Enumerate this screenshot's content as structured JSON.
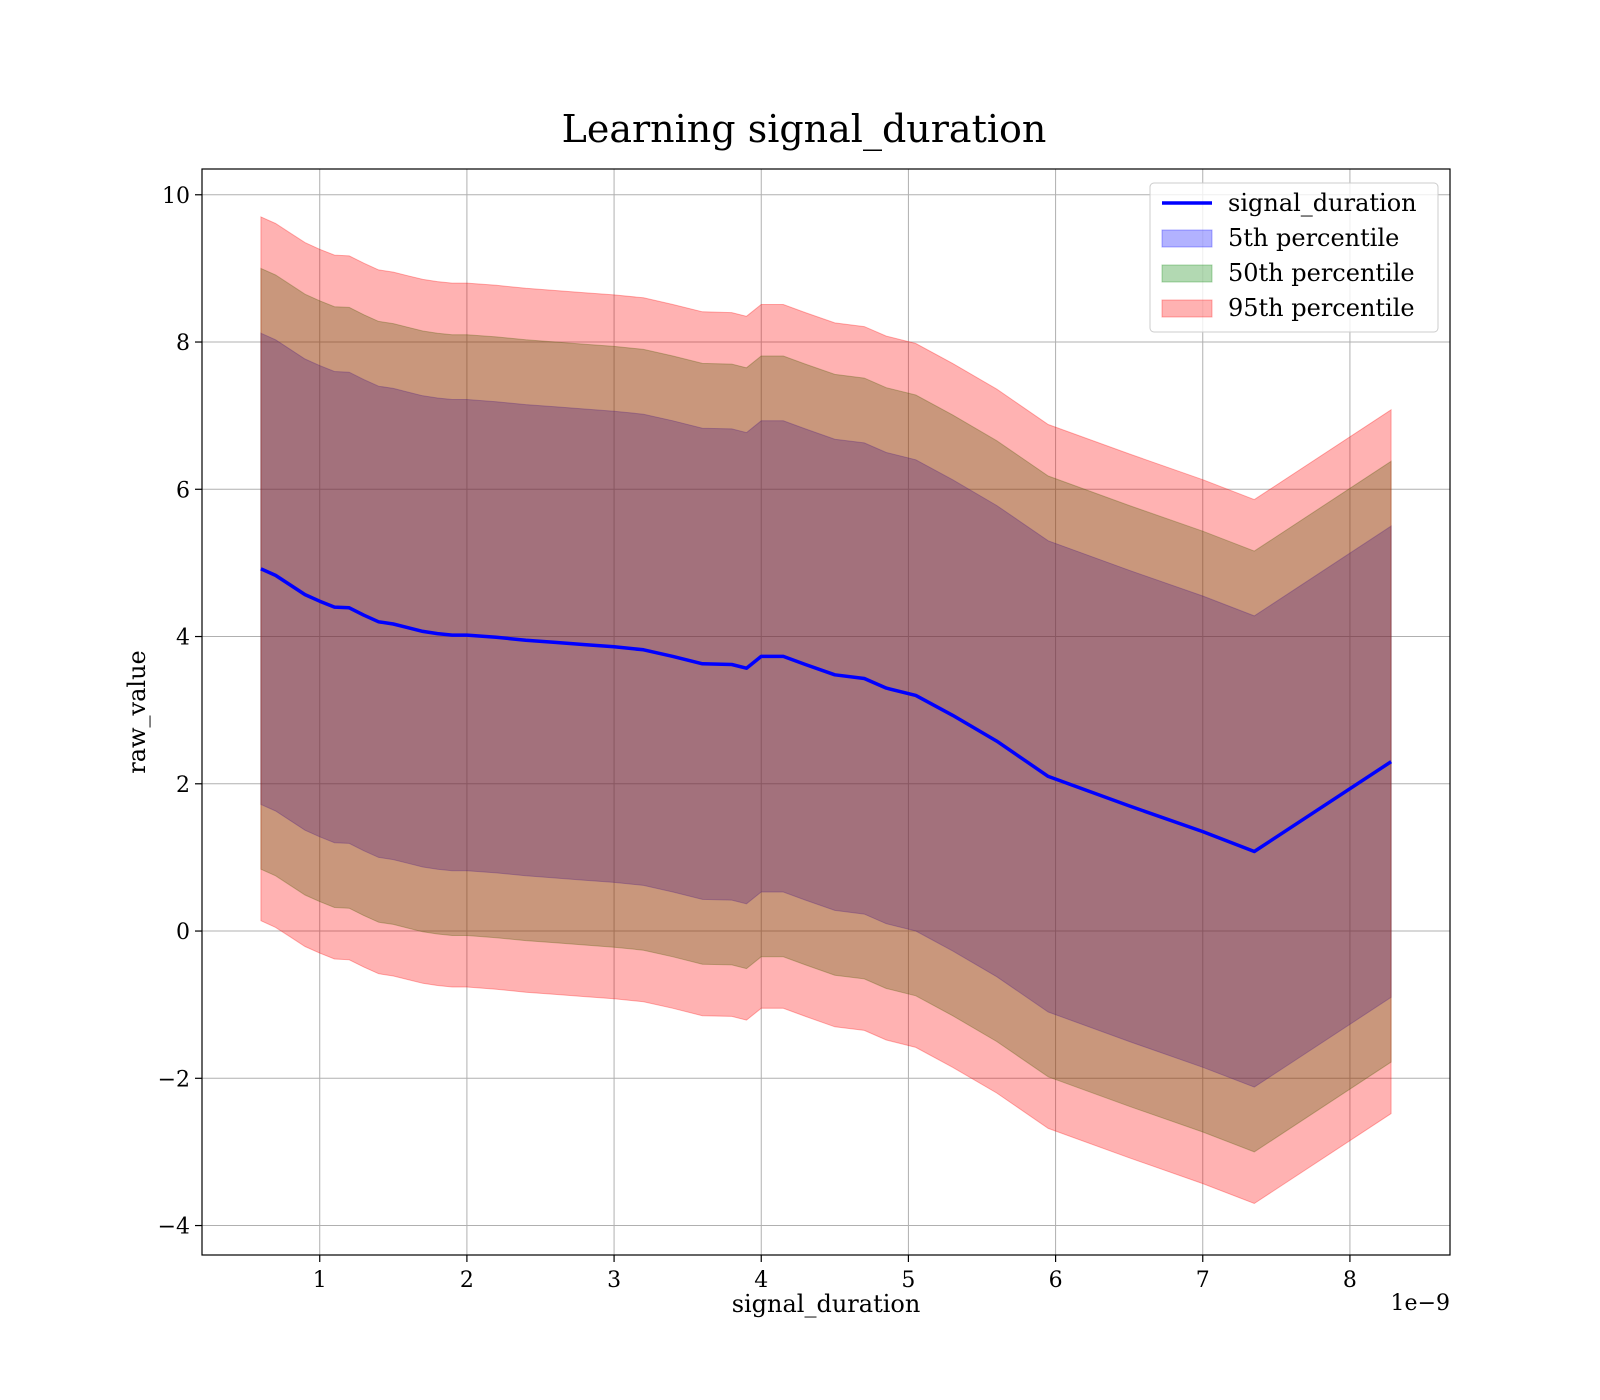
{
  "chart_data": {
    "type": "line",
    "title": "Learning signal_duration",
    "xlabel": "signal_duration",
    "ylabel": "raw_value",
    "x_offset_label": "1e−9",
    "xlim": [
      0.2,
      8.68
    ],
    "ylim": [
      -4.4,
      10.35
    ],
    "xticks": [
      1,
      2,
      3,
      4,
      5,
      6,
      7,
      8
    ],
    "xtick_labels": [
      "1",
      "2",
      "3",
      "4",
      "5",
      "6",
      "7",
      "8"
    ],
    "yticks": [
      -4,
      -2,
      0,
      2,
      4,
      6,
      8,
      10
    ],
    "ytick_labels": [
      "−4",
      "−2",
      "0",
      "2",
      "4",
      "6",
      "8",
      "10"
    ],
    "grid": true,
    "legend_position": "top-right",
    "x": [
      0.6,
      0.7,
      0.8,
      0.9,
      1.0,
      1.1,
      1.2,
      1.3,
      1.4,
      1.5,
      1.6,
      1.7,
      1.8,
      1.9,
      2.0,
      2.2,
      2.4,
      2.6,
      2.8,
      3.0,
      3.2,
      3.4,
      3.6,
      3.8,
      3.9,
      4.0,
      4.15,
      4.3,
      4.5,
      4.7,
      4.85,
      5.05,
      5.3,
      5.6,
      5.95,
      6.5,
      7.0,
      7.35,
      8.28
    ],
    "series": [
      {
        "name": "signal_duration",
        "kind": "line",
        "color": "#0000ff",
        "values": [
          4.92,
          4.83,
          4.7,
          4.57,
          4.48,
          4.4,
          4.39,
          4.29,
          4.2,
          4.17,
          4.12,
          4.07,
          4.04,
          4.02,
          4.02,
          3.99,
          3.95,
          3.92,
          3.89,
          3.86,
          3.82,
          3.73,
          3.63,
          3.62,
          3.57,
          3.73,
          3.73,
          3.62,
          3.48,
          3.43,
          3.3,
          3.2,
          2.93,
          2.58,
          2.1,
          1.7,
          1.35,
          1.08,
          2.3
        ]
      },
      {
        "name": "5th percentile",
        "kind": "band",
        "color": "#0000ff",
        "opacity": 0.3,
        "lower": [
          1.72,
          1.63,
          1.5,
          1.37,
          1.28,
          1.2,
          1.19,
          1.09,
          1.0,
          0.97,
          0.92,
          0.87,
          0.84,
          0.82,
          0.82,
          0.79,
          0.75,
          0.72,
          0.69,
          0.66,
          0.62,
          0.53,
          0.43,
          0.42,
          0.37,
          0.53,
          0.53,
          0.42,
          0.28,
          0.23,
          0.1,
          0.0,
          -0.27,
          -0.62,
          -1.1,
          -1.5,
          -1.85,
          -2.12,
          -0.9
        ],
        "upper": [
          8.12,
          8.03,
          7.9,
          7.77,
          7.68,
          7.6,
          7.59,
          7.49,
          7.4,
          7.37,
          7.32,
          7.27,
          7.24,
          7.22,
          7.22,
          7.19,
          7.15,
          7.12,
          7.09,
          7.06,
          7.02,
          6.93,
          6.83,
          6.82,
          6.77,
          6.93,
          6.93,
          6.82,
          6.68,
          6.63,
          6.5,
          6.4,
          6.13,
          5.78,
          5.3,
          4.9,
          4.55,
          4.28,
          5.5
        ]
      },
      {
        "name": "50th percentile",
        "kind": "band",
        "color": "#008000",
        "opacity": 0.3,
        "lower": [
          0.84,
          0.75,
          0.62,
          0.49,
          0.4,
          0.32,
          0.31,
          0.21,
          0.12,
          0.09,
          0.04,
          -0.01,
          -0.04,
          -0.06,
          -0.06,
          -0.09,
          -0.13,
          -0.16,
          -0.19,
          -0.22,
          -0.26,
          -0.35,
          -0.45,
          -0.46,
          -0.51,
          -0.35,
          -0.35,
          -0.46,
          -0.6,
          -0.65,
          -0.78,
          -0.88,
          -1.15,
          -1.5,
          -1.98,
          -2.38,
          -2.73,
          -3.0,
          -1.78
        ],
        "upper": [
          9.0,
          8.91,
          8.78,
          8.65,
          8.56,
          8.48,
          8.47,
          8.37,
          8.28,
          8.25,
          8.2,
          8.15,
          8.12,
          8.1,
          8.1,
          8.07,
          8.03,
          8.0,
          7.97,
          7.94,
          7.9,
          7.81,
          7.71,
          7.7,
          7.65,
          7.81,
          7.81,
          7.7,
          7.56,
          7.51,
          7.38,
          7.28,
          7.01,
          6.66,
          6.18,
          5.78,
          5.43,
          5.16,
          6.38
        ]
      },
      {
        "name": "95th percentile",
        "kind": "band",
        "color": "#ff0000",
        "opacity": 0.3,
        "lower": [
          0.14,
          0.05,
          -0.08,
          -0.21,
          -0.3,
          -0.38,
          -0.39,
          -0.49,
          -0.58,
          -0.61,
          -0.66,
          -0.71,
          -0.74,
          -0.76,
          -0.76,
          -0.79,
          -0.83,
          -0.86,
          -0.89,
          -0.92,
          -0.96,
          -1.05,
          -1.15,
          -1.16,
          -1.21,
          -1.05,
          -1.05,
          -1.16,
          -1.3,
          -1.35,
          -1.48,
          -1.58,
          -1.85,
          -2.2,
          -2.68,
          -3.08,
          -3.43,
          -3.7,
          -2.48
        ],
        "upper": [
          9.7,
          9.61,
          9.48,
          9.35,
          9.26,
          9.18,
          9.17,
          9.07,
          8.98,
          8.95,
          8.9,
          8.85,
          8.82,
          8.8,
          8.8,
          8.77,
          8.73,
          8.7,
          8.67,
          8.64,
          8.6,
          8.51,
          8.41,
          8.4,
          8.35,
          8.51,
          8.51,
          8.4,
          8.26,
          8.21,
          8.08,
          7.98,
          7.71,
          7.36,
          6.88,
          6.48,
          6.13,
          5.86,
          7.08
        ]
      }
    ]
  }
}
